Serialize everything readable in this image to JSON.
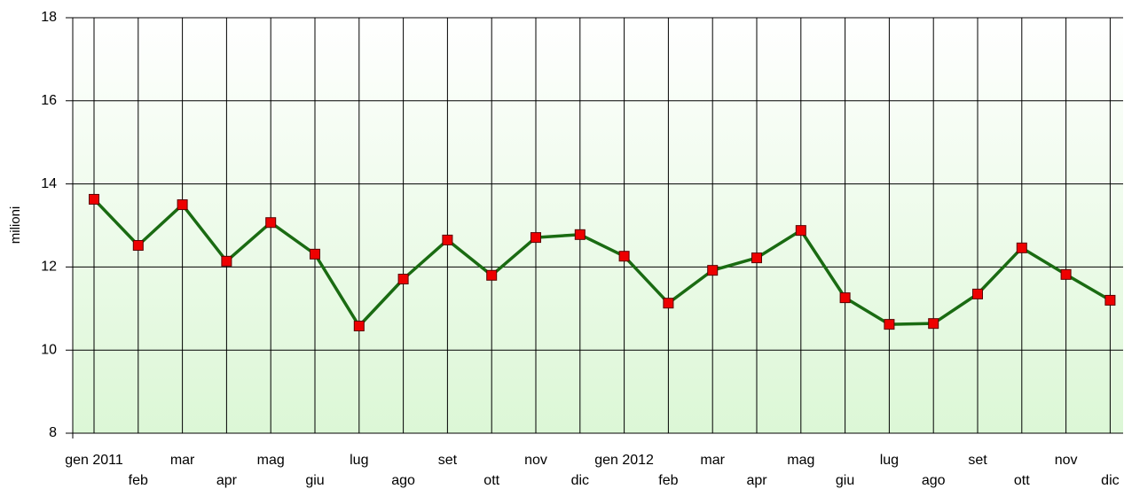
{
  "chart_data": {
    "type": "line",
    "y_label": "milioni",
    "categories": [
      "gen 2011",
      "feb",
      "mar",
      "apr",
      "mag",
      "giu",
      "lug",
      "ago",
      "set",
      "ott",
      "nov",
      "dic",
      "gen 2012",
      "feb",
      "mar",
      "apr",
      "mag",
      "giu",
      "lug",
      "ago",
      "set",
      "ott",
      "nov",
      "dic"
    ],
    "series": [
      {
        "color": "#1a6b12",
        "marker_color": "#ee0000",
        "values": [
          13.63,
          12.52,
          13.5,
          12.14,
          13.07,
          12.31,
          10.58,
          11.71,
          12.65,
          11.8,
          12.71,
          12.78,
          12.26,
          11.13,
          11.92,
          12.22,
          12.88,
          11.26,
          10.62,
          10.64,
          11.35,
          12.46,
          11.82,
          11.2
        ]
      }
    ],
    "ylim": [
      8,
      18
    ],
    "yticks": [
      8,
      10,
      12,
      14,
      16,
      18
    ],
    "grid": true
  }
}
